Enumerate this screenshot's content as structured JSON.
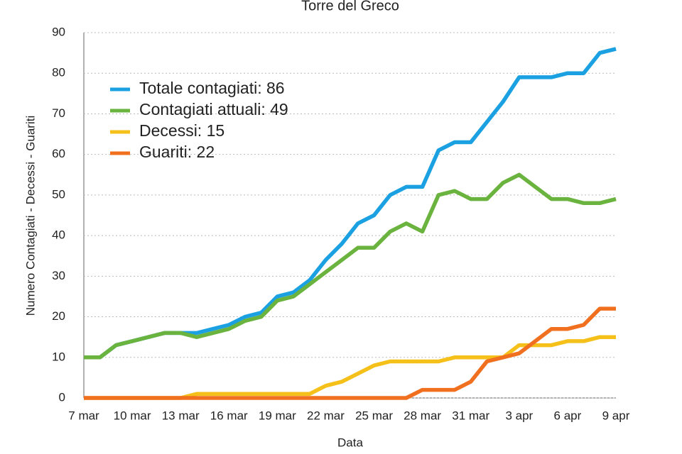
{
  "chart_data": {
    "type": "line",
    "title": "Torre del Greco",
    "x_label": "Data",
    "y_label": "Numero Contagiati - Decessi - Guariti",
    "categories": [
      "7 mar",
      null,
      null,
      "10 mar",
      null,
      null,
      "13 mar",
      null,
      null,
      "16 mar",
      null,
      null,
      "19 mar",
      null,
      null,
      "22 mar",
      null,
      null,
      "25 mar",
      null,
      null,
      "28 mar",
      null,
      null,
      "31 mar",
      null,
      null,
      "3 apr",
      null,
      null,
      "6 apr",
      null,
      null,
      "9 apr"
    ],
    "series": [
      {
        "name": "Totale contagiati: 86",
        "color": "#1ba1e2",
        "values": [
          10,
          10,
          13,
          14,
          15,
          16,
          16,
          16,
          17,
          18,
          20,
          21,
          25,
          26,
          29,
          34,
          38,
          43,
          45,
          50,
          52,
          52,
          61,
          63,
          63,
          68,
          73,
          79,
          79,
          79,
          80,
          80,
          85,
          86
        ]
      },
      {
        "name": "Contagiati attuali: 49",
        "color": "#6ab33e",
        "values": [
          10,
          10,
          13,
          14,
          15,
          16,
          16,
          15,
          16,
          17,
          19,
          20,
          24,
          25,
          28,
          31,
          34,
          37,
          37,
          41,
          43,
          41,
          50,
          51,
          49,
          49,
          53,
          55,
          52,
          49,
          49,
          48,
          48,
          49
        ]
      },
      {
        "name": "Decessi: 15",
        "color": "#f5c01a",
        "values": [
          0,
          0,
          0,
          0,
          0,
          0,
          0,
          1,
          1,
          1,
          1,
          1,
          1,
          1,
          1,
          3,
          4,
          6,
          8,
          9,
          9,
          9,
          9,
          10,
          10,
          10,
          10,
          13,
          13,
          13,
          14,
          14,
          15,
          15
        ]
      },
      {
        "name": "Guariti: 22",
        "color": "#f07020",
        "values": [
          0,
          0,
          0,
          0,
          0,
          0,
          0,
          0,
          0,
          0,
          0,
          0,
          0,
          0,
          0,
          0,
          0,
          0,
          0,
          0,
          0,
          2,
          2,
          2,
          4,
          9,
          10,
          11,
          14,
          17,
          17,
          18,
          22,
          22
        ]
      }
    ],
    "ylim": [
      0,
      90
    ],
    "yticks": [
      0,
      10,
      20,
      30,
      40,
      50,
      60,
      70,
      80,
      90
    ],
    "grid": true,
    "legend": "upper left"
  }
}
